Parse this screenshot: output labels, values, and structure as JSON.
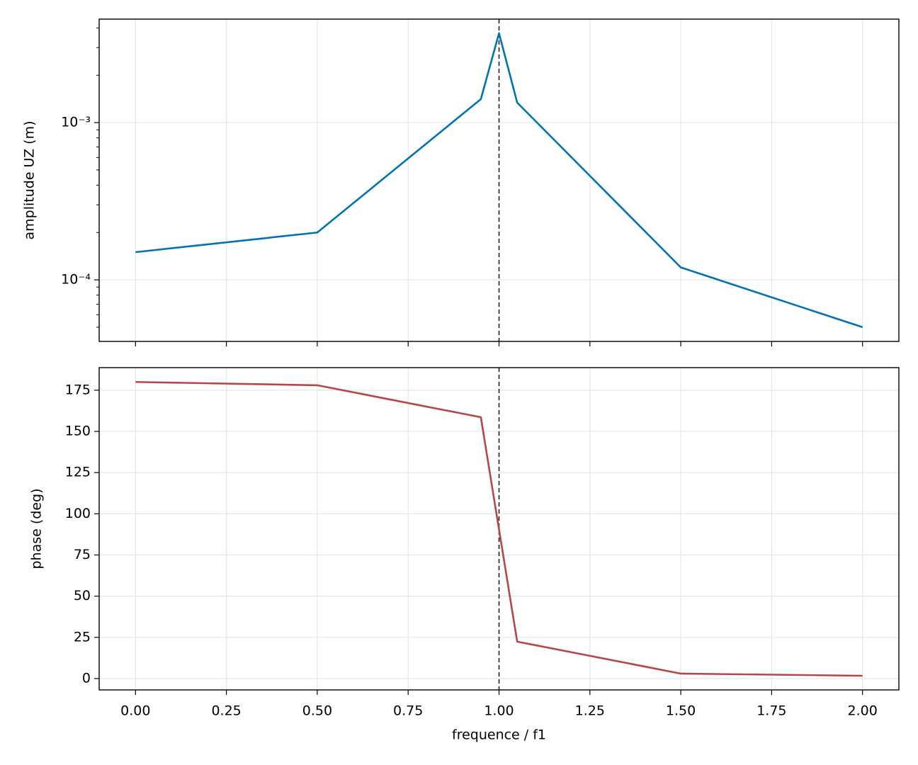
{
  "chart_data": [
    {
      "type": "line",
      "ylabel": "amplitude UZ (m)",
      "x": [
        0,
        0.5,
        0.95,
        1.0,
        1.05,
        1.5,
        2.0
      ],
      "values": [
        0.00015,
        0.0002,
        0.00141,
        0.0037,
        0.00134,
        0.00012,
        5e-05
      ],
      "color": "#0173b2",
      "yscale": "log",
      "xlim": [
        -0.1,
        2.1
      ],
      "ylim": [
        4.06e-05,
        0.00455
      ],
      "xticks": [
        0,
        0.25,
        0.5,
        0.75,
        1.0,
        1.25,
        1.5,
        1.75,
        2.0
      ],
      "yticks": [
        {
          "value": 0.0001,
          "label": "10⁻⁴"
        },
        {
          "value": 0.001,
          "label": "10⁻³"
        }
      ],
      "vline": 1.0,
      "grid": true
    },
    {
      "type": "line",
      "ylabel": "phase (deg)",
      "xlabel": "frequence / f1",
      "x": [
        0,
        0.5,
        0.95,
        1.0,
        1.05,
        1.5,
        2.0
      ],
      "values": [
        180,
        178,
        158.6,
        90.5,
        22.4,
        3,
        1.7
      ],
      "color": "#b94646",
      "xlim": [
        -0.1,
        2.1
      ],
      "ylim": [
        -6.9,
        188.7
      ],
      "xticks": [
        {
          "value": 0,
          "label": "0.00"
        },
        {
          "value": 0.25,
          "label": "0.25"
        },
        {
          "value": 0.5,
          "label": "0.50"
        },
        {
          "value": 0.75,
          "label": "0.75"
        },
        {
          "value": 1.0,
          "label": "1.00"
        },
        {
          "value": 1.25,
          "label": "1.25"
        },
        {
          "value": 1.5,
          "label": "1.50"
        },
        {
          "value": 1.75,
          "label": "1.75"
        },
        {
          "value": 2.0,
          "label": "2.00"
        }
      ],
      "yticks": [
        0,
        25,
        50,
        75,
        100,
        125,
        150,
        175
      ],
      "vline": 1.0,
      "grid": true
    }
  ]
}
